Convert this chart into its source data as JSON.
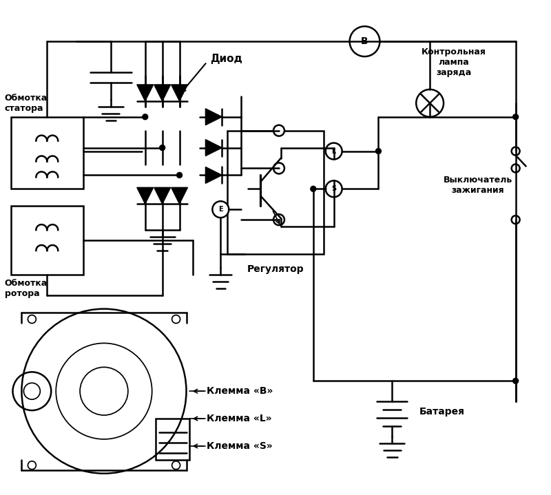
{
  "title": "",
  "bg_color": "#ffffff",
  "line_color": "#000000",
  "lw": 1.8,
  "fig_width": 8.0,
  "fig_height": 7.19,
  "labels": {
    "diod": "Диод",
    "obm_stat": "Обмотка\nстатора",
    "obm_rot": "Обмотка\nротора",
    "regul": "Регулятор",
    "kontr": "Контрольная\nлампа\nзаряда",
    "vykl": "Выключатель\nзажигания",
    "bat": "Батарея",
    "klemma_B": "Клемма «B»",
    "klemma_L": "Клемма «L»",
    "klemma_S": "Клемма «S»"
  }
}
